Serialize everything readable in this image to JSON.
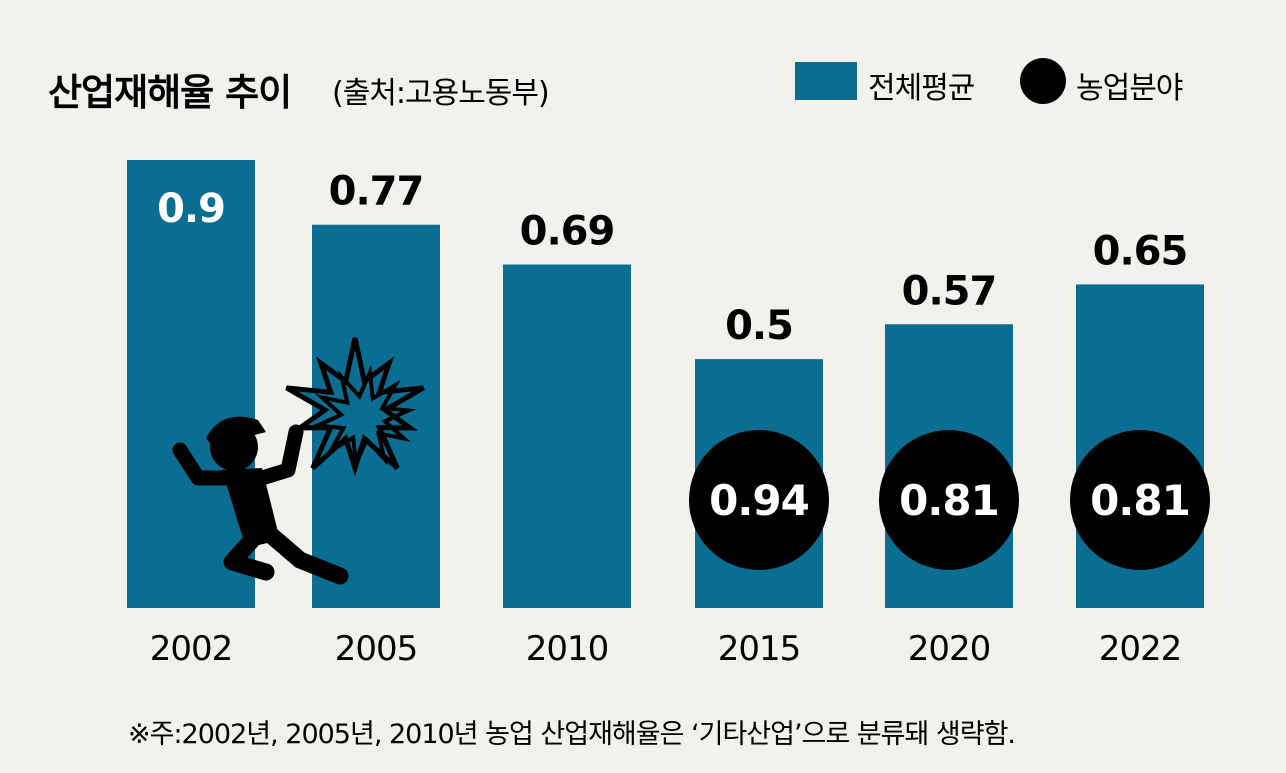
{
  "header": {
    "title": "산업재해율 추이",
    "source": "(출처:고용노동부)"
  },
  "legend": {
    "items": [
      {
        "label": "전체평균",
        "shape": "square",
        "color": "#0a6e93"
      },
      {
        "label": "농업분야",
        "shape": "circle",
        "color": "#000000"
      }
    ]
  },
  "note": "※주:2002년, 2005년, 2010년 농업 산업재해율은 ‘기타산업’으로 분류돼 생략함.",
  "colors": {
    "background": "#f3f1ec",
    "bar": "#0a6e93",
    "circle": "#000000"
  },
  "illustration": {
    "icon": "falling-worker-icon",
    "burst": "impact-burst-icon"
  },
  "chart_data": {
    "type": "bar",
    "title": "산업재해율 추이",
    "categories": [
      "2002",
      "2005",
      "2010",
      "2015",
      "2020",
      "2022"
    ],
    "series": [
      {
        "name": "전체평균",
        "values": [
          0.9,
          0.77,
          0.69,
          0.5,
          0.57,
          0.65
        ],
        "labels": [
          "0.9",
          "0.77",
          "0.69",
          "0.5",
          "0.57",
          "0.65"
        ]
      },
      {
        "name": "농업분야",
        "values": [
          null,
          null,
          null,
          0.94,
          0.81,
          0.81
        ],
        "labels": [
          "",
          "",
          "",
          "0.94",
          "0.81",
          "0.81"
        ]
      }
    ],
    "xlabel": "",
    "ylabel": "",
    "ylim": [
      0,
      0.9
    ],
    "grid": false,
    "legend_position": "top-right"
  }
}
